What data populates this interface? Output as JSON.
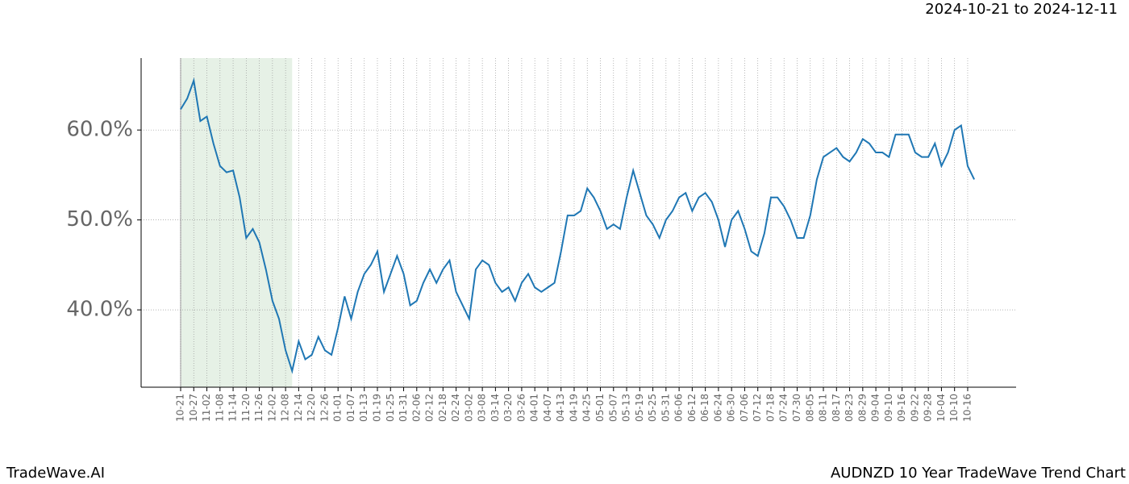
{
  "chart_data": {
    "type": "line",
    "title": "AUDNZD 10 Year TradeWave Trend Chart",
    "subtitle": "2024-10-21 to 2024-12-11",
    "brand": "TradeWave.AI",
    "categories": [
      "10-21",
      null,
      "10-27",
      null,
      "11-02",
      null,
      "11-08",
      null,
      "11-14",
      null,
      "11-20",
      null,
      "11-26",
      null,
      "12-02",
      null,
      "12-08",
      null,
      "12-14",
      null,
      "12-20",
      null,
      "12-26",
      null,
      "01-01",
      null,
      "01-07",
      null,
      "01-13",
      null,
      "01-19",
      null,
      "01-25",
      null,
      "01-31",
      null,
      "02-06",
      null,
      "02-12",
      null,
      "02-18",
      null,
      "02-24",
      null,
      "03-02",
      null,
      "03-08",
      null,
      "03-14",
      null,
      "03-20",
      null,
      "03-26",
      null,
      "04-01",
      null,
      "04-07",
      null,
      "04-13",
      null,
      "04-19",
      null,
      "04-25",
      null,
      "05-01",
      null,
      "05-07",
      null,
      "05-13",
      null,
      "05-19",
      null,
      "05-25",
      null,
      "05-31",
      null,
      "06-06",
      null,
      "06-12",
      null,
      "06-18",
      null,
      "06-24",
      null,
      "06-30",
      null,
      "07-06",
      null,
      "07-12",
      null,
      "07-18",
      null,
      "07-24",
      null,
      "07-30",
      null,
      "08-05",
      null,
      "08-11",
      null,
      "08-17",
      null,
      "08-23",
      null,
      "08-29",
      null,
      "09-04",
      null,
      "09-10",
      null,
      "09-16",
      null,
      "09-22",
      null,
      "09-28",
      null,
      "10-04",
      null,
      "10-10",
      null,
      "10-16",
      null
    ],
    "series": [
      {
        "name": "AUDNZD",
        "color": "#1f77b4",
        "values": [
          62.3,
          63.5,
          65.5,
          61.0,
          61.5,
          58.5,
          56.0,
          55.3,
          55.5,
          52.5,
          48.0,
          49.0,
          47.5,
          44.5,
          41.0,
          39.0,
          35.5,
          33.2,
          36.5,
          34.5,
          35.0,
          37.0,
          35.5,
          35.0,
          38.0,
          41.5,
          39.0,
          42.0,
          44.0,
          45.0,
          46.5,
          42.0,
          44.0,
          46.0,
          44.0,
          40.5,
          41.0,
          43.0,
          44.5,
          43.0,
          44.5,
          45.5,
          42.0,
          40.5,
          39.0,
          44.5,
          45.5,
          45.0,
          43.0,
          42.0,
          42.5,
          41.0,
          43.0,
          44.0,
          42.5,
          42.0,
          42.5,
          43.0,
          46.5,
          50.5,
          50.5,
          51.0,
          53.5,
          52.5,
          51.0,
          49.0,
          49.5,
          49.0,
          52.5,
          55.5,
          53.0,
          50.5,
          49.5,
          48.0,
          50.0,
          51.0,
          52.5,
          53.0,
          51.0,
          52.5,
          53.0,
          52.0,
          50.0,
          47.0,
          50.0,
          51.0,
          49.0,
          46.5,
          46.0,
          48.5,
          52.5,
          52.5,
          51.5,
          50.0,
          48.0,
          48.0,
          50.5,
          54.5,
          57.0,
          57.5,
          58.0,
          57.0,
          56.5,
          57.5,
          59.0,
          58.5,
          57.5,
          57.5,
          57.0,
          59.5,
          59.5,
          59.5,
          57.5,
          57.0,
          57.0,
          58.5,
          56.0,
          57.5,
          60.0,
          60.5,
          56.0,
          54.5
        ]
      }
    ],
    "ylim": [
      31.4,
      68.0
    ],
    "yticks": [
      {
        "value": 40,
        "label": "40.0%"
      },
      {
        "value": 50,
        "label": "50.0%"
      },
      {
        "value": 60,
        "label": "60.0%"
      }
    ],
    "grid": true,
    "shaded_span": [
      0,
      17
    ],
    "shade_color": "#e6f1e6"
  }
}
